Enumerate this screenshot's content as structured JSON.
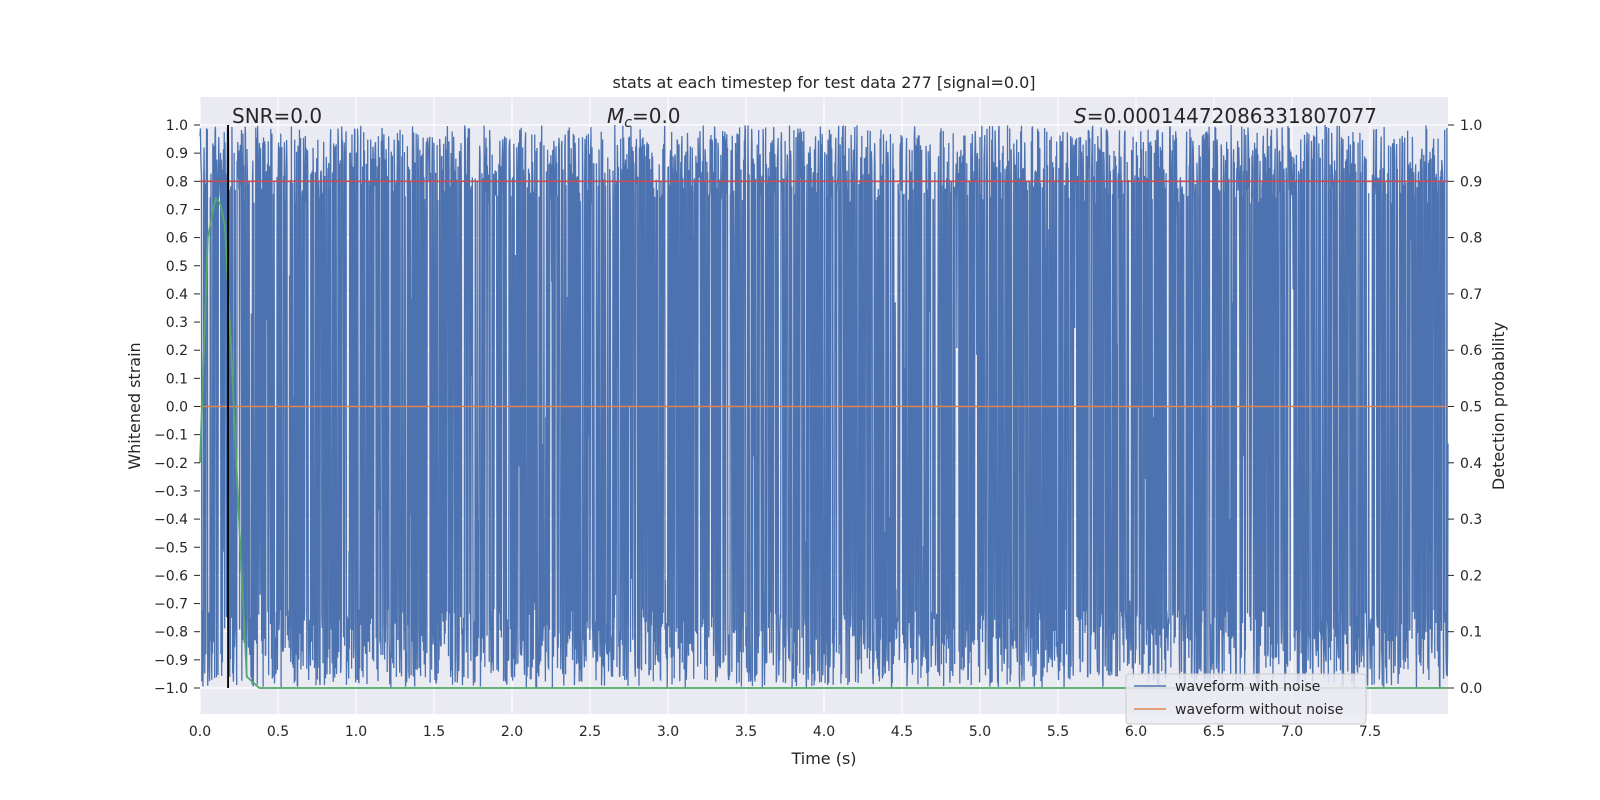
{
  "chart_data": {
    "type": "line",
    "title": "stats at each timestep for test data 277 [signal=0.0]",
    "xlabel": "Time (s)",
    "ylabel_left": "Whitened strain",
    "ylabel_right": "Detection probability",
    "xlim": [
      0.0,
      8.0
    ],
    "ylim_left": [
      -1.0,
      1.0
    ],
    "ylim_right": [
      0.0,
      1.0
    ],
    "x_ticks": [
      "0.0",
      "0.5",
      "1.0",
      "1.5",
      "2.0",
      "2.5",
      "3.0",
      "3.5",
      "4.0",
      "4.5",
      "5.0",
      "5.5",
      "6.0",
      "6.5",
      "7.0",
      "7.5"
    ],
    "y_left_ticks": [
      "1.0",
      "0.9",
      "0.8",
      "0.7",
      "0.6",
      "0.5",
      "0.4",
      "0.3",
      "0.2",
      "0.1",
      "0.0",
      "−0.1",
      "−0.2",
      "−0.3",
      "−0.4",
      "−0.5",
      "−0.6",
      "−0.7",
      "−0.8",
      "−0.9",
      "−1.0"
    ],
    "y_right_ticks": [
      "1.0",
      "0.9",
      "0.8",
      "0.7",
      "0.6",
      "0.5",
      "0.4",
      "0.3",
      "0.2",
      "0.1",
      "0.0"
    ],
    "annotations": {
      "snr": "SNR=0.0",
      "mc_symbol": "M",
      "mc_sub": "c",
      "mc_value": "=0.0",
      "s_symbol": "S",
      "s_value": "=0.00014472086331807077"
    },
    "legend": {
      "placement": "lower-right",
      "entries": [
        "waveform with noise",
        "waveform without noise"
      ]
    },
    "series": [
      {
        "name": "waveform with noise",
        "color": "#4c72b0",
        "axis": "left",
        "description_values": {
          "min": -1.0,
          "max": 1.0
        }
      },
      {
        "name": "waveform without noise",
        "color": "#dd8452",
        "axis": "left",
        "values_constant": 0.0
      },
      {
        "color": "#55a868",
        "axis": "right",
        "x": [
          0.0,
          0.05,
          0.1,
          0.13,
          0.16,
          0.2,
          0.25,
          0.3,
          0.38,
          8.0
        ],
        "values": [
          0.4,
          0.8,
          0.87,
          0.86,
          0.82,
          0.6,
          0.3,
          0.02,
          0.0,
          0.0
        ]
      },
      {
        "color": "#c44e52",
        "axis": "right",
        "values_constant": 0.9
      }
    ],
    "vertical_line": {
      "x": 0.18,
      "color": "#000000"
    },
    "grid": true,
    "background": "#eaeaf2"
  }
}
